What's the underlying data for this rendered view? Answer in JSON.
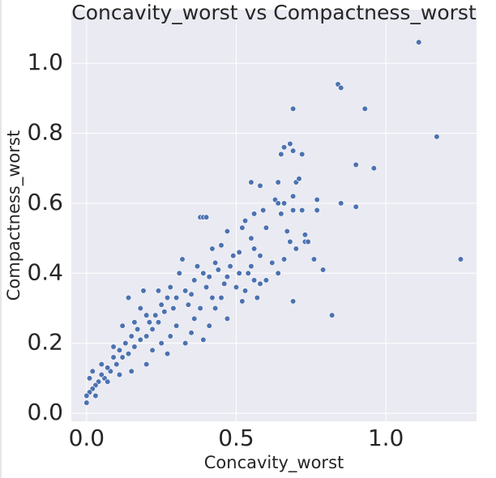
{
  "chart_data": {
    "type": "scatter",
    "title": "Concavity_worst vs Compactness_worst",
    "x_label": "Concavity_worst",
    "y_label": "Compactness_worst",
    "xlim": [
      -0.051,
      1.303
    ],
    "ylim": [
      -0.023,
      1.153
    ],
    "xticks": [
      {
        "value": 0,
        "label": "0.0"
      },
      0.5,
      {
        "value": 1,
        "label": "1.0"
      }
    ],
    "yticks": [
      {
        "value": 0,
        "label": "0.0"
      },
      0.2,
      0.4,
      0.6,
      0.8,
      {
        "value": 1,
        "label": "1.0"
      }
    ],
    "grid": true,
    "color": "#4c72b0",
    "x": [
      1.11,
      1.17,
      1.25,
      0.84,
      0.85,
      0.93,
      0.69,
      0.9,
      0.96,
      0.85,
      0.9,
      0.82,
      0.79,
      0.68,
      0.69,
      0.65,
      0.66,
      0.72,
      0.7,
      0.71,
      0.64,
      0.55,
      0.58,
      0.69,
      0.77,
      0.63,
      0.64,
      0.66,
      0.69,
      0.77,
      0.72,
      0.65,
      0.6,
      0.67,
      0.73,
      0.73,
      0.74,
      0.68,
      0.76,
      0.7,
      0.69,
      0.59,
      0.56,
      0.53,
      0.52,
      0.38,
      0.39,
      0.4,
      0.47,
      0.42,
      0.45,
      0.49,
      0.51,
      0.55,
      0.56,
      0.58,
      0.55,
      0.62,
      0.66,
      0.64,
      0.6,
      0.58,
      0.56,
      0.53,
      0.57,
      0.51,
      0.48,
      0.47,
      0.46,
      0.44,
      0.43,
      0.41,
      0.4,
      0.39,
      0.37,
      0.36,
      0.35,
      0.34,
      0.33,
      0.32,
      0.31,
      0.3,
      0.29,
      0.28,
      0.27,
      0.26,
      0.25,
      0.24,
      0.23,
      0.22,
      0.21,
      0.2,
      0.19,
      0.18,
      0.17,
      0.16,
      0.15,
      0.14,
      0.13,
      0.12,
      0.11,
      0.1,
      0.09,
      0.08,
      0.07,
      0.06,
      0.05,
      0.04,
      0.03,
      0.02,
      0.01,
      0.0,
      0.0,
      0.01,
      0.02,
      0.03,
      0.05,
      0.07,
      0.09,
      0.12,
      0.14,
      0.18,
      0.22,
      0.25,
      0.28,
      0.3,
      0.33,
      0.36,
      0.39,
      0.41,
      0.43,
      0.47,
      0.27,
      0.2,
      0.15,
      0.11,
      0.35,
      0.38,
      0.42,
      0.45,
      0.5,
      0.52,
      0.54,
      0.2,
      0.24,
      0.16
    ],
    "y": [
      1.06,
      0.79,
      0.44,
      0.94,
      0.93,
      0.87,
      0.87,
      0.71,
      0.7,
      0.6,
      0.59,
      0.28,
      0.41,
      0.77,
      0.75,
      0.74,
      0.76,
      0.74,
      0.66,
      0.67,
      0.66,
      0.66,
      0.65,
      0.62,
      0.61,
      0.61,
      0.6,
      0.6,
      0.58,
      0.58,
      0.58,
      0.57,
      0.53,
      0.52,
      0.51,
      0.49,
      0.49,
      0.49,
      0.44,
      0.47,
      0.32,
      0.58,
      0.57,
      0.55,
      0.53,
      0.56,
      0.56,
      0.56,
      0.52,
      0.47,
      0.48,
      0.45,
      0.46,
      0.5,
      0.47,
      0.45,
      0.42,
      0.43,
      0.44,
      0.4,
      0.38,
      0.37,
      0.38,
      0.35,
      0.33,
      0.4,
      0.42,
      0.39,
      0.37,
      0.41,
      0.43,
      0.39,
      0.36,
      0.4,
      0.42,
      0.38,
      0.34,
      0.31,
      0.35,
      0.44,
      0.4,
      0.33,
      0.3,
      0.36,
      0.33,
      0.29,
      0.31,
      0.26,
      0.28,
      0.24,
      0.26,
      0.22,
      0.35,
      0.21,
      0.24,
      0.19,
      0.22,
      0.17,
      0.2,
      0.16,
      0.18,
      0.14,
      0.16,
      0.12,
      0.13,
      0.1,
      0.11,
      0.09,
      0.08,
      0.07,
      0.06,
      0.03,
      0.05,
      0.1,
      0.12,
      0.05,
      0.14,
      0.09,
      0.19,
      0.25,
      0.33,
      0.3,
      0.18,
      0.2,
      0.22,
      0.25,
      0.2,
      0.27,
      0.21,
      0.25,
      0.3,
      0.27,
      0.17,
      0.14,
      0.12,
      0.11,
      0.23,
      0.3,
      0.33,
      0.33,
      0.36,
      0.32,
      0.4,
      0.28,
      0.35,
      0.26
    ]
  }
}
